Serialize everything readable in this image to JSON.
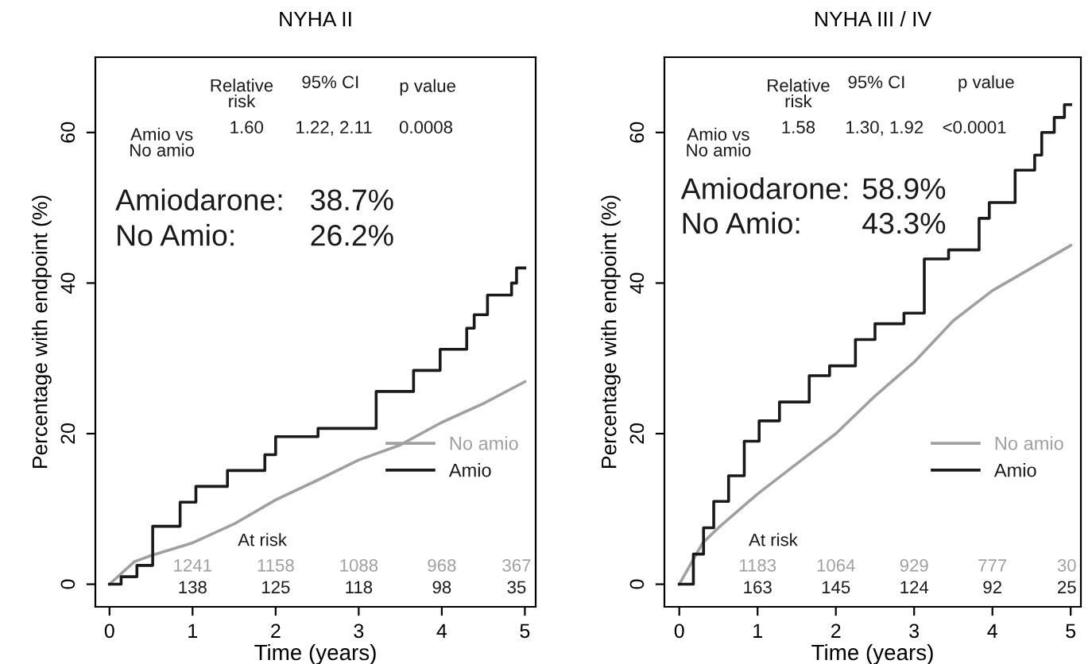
{
  "chart_data": [
    {
      "type": "line",
      "title": "NYHA II",
      "xlabel": "Time (years)",
      "ylabel": "Percentage with endpoint (%)",
      "xlim": [
        -0.17,
        5.13
      ],
      "ylim": [
        -3,
        70
      ],
      "xticks": [
        0,
        1,
        2,
        3,
        4,
        5
      ],
      "yticks": [
        0,
        20,
        40,
        60
      ],
      "grid": false,
      "legend": "right",
      "line_style": "solid",
      "marker": "none",
      "series": [
        {
          "name": "No amio",
          "color": "#a0a0a0",
          "x": [
            0,
            0.3,
            0.5,
            1,
            1.5,
            2,
            2.5,
            3,
            3.5,
            4,
            4.5,
            5
          ],
          "values": [
            0,
            3,
            3.8,
            5.5,
            8,
            11.2,
            13.8,
            16.5,
            18.5,
            21.5,
            24,
            26.9
          ]
        },
        {
          "name": "Amio",
          "type": "step",
          "color": "#1a1a1a",
          "x": [
            0,
            0.14,
            0.33,
            0.52,
            0.85,
            1.04,
            1.42,
            1.87,
            2.0,
            2.51,
            2.89,
            3.21,
            3.66,
            3.98,
            4.3,
            4.39,
            4.55,
            4.84,
            4.9,
            5.0
          ],
          "values": [
            0,
            1,
            2.5,
            7.7,
            10.9,
            13,
            15.1,
            17.2,
            19.6,
            20.7,
            20.7,
            25.6,
            28.4,
            31.2,
            34,
            35.8,
            38.4,
            40,
            42,
            42
          ]
        }
      ],
      "annotations": [
        "Relative\nrisk",
        "95% CI",
        "p value",
        "Amio vs\nNo amio",
        "1.60",
        "1.22, 2.11",
        "0.0008",
        "Amiodarone:",
        "38.7%",
        "No Amio:",
        "26.2%",
        "At risk",
        "1241",
        "1158",
        "1088",
        "968",
        "367",
        "138",
        "125",
        "118",
        "98",
        "35"
      ]
    },
    {
      "type": "line",
      "title": "NYHA III / IV",
      "xlabel": "Time (years)",
      "ylabel": "Percentage with endpoint (%)",
      "xlim": [
        -0.19,
        5.13
      ],
      "ylim": [
        -3,
        70
      ],
      "xticks": [
        0,
        1,
        2,
        3,
        4,
        5
      ],
      "yticks": [
        0,
        20,
        40,
        60
      ],
      "grid": false,
      "legend": "right",
      "line_style": "solid",
      "marker": "none",
      "series": [
        {
          "name": "No amio",
          "color": "#a0a0a0",
          "x": [
            0,
            0.3,
            0.5,
            1,
            1.5,
            2,
            2.5,
            3,
            3.5,
            4,
            4.5,
            5
          ],
          "values": [
            0,
            5.5,
            7.5,
            12,
            16,
            20,
            25,
            29.5,
            35,
            39,
            42,
            45
          ]
        },
        {
          "name": "Amio",
          "type": "step",
          "color": "#1a1a1a",
          "x": [
            0,
            0.18,
            0.31,
            0.44,
            0.63,
            0.83,
            1.02,
            1.28,
            1.54,
            1.66,
            1.92,
            2.25,
            2.5,
            2.87,
            3.13,
            3.44,
            3.83,
            3.96,
            4.29,
            4.54,
            4.63,
            4.79,
            4.92,
            5.0
          ],
          "values": [
            0,
            4,
            7.5,
            11,
            14.4,
            19,
            21.7,
            24.2,
            24.2,
            27.7,
            29,
            32.5,
            34.6,
            36,
            43.2,
            44.4,
            48.6,
            50.7,
            55,
            57,
            60,
            62,
            63.7,
            63.7
          ]
        }
      ],
      "annotations": [
        "Relative\nrisk",
        "95% CI",
        "p value",
        "Amio vs\nNo amio",
        "1.58",
        "1.30, 1.92",
        "<0.0001",
        "Amiodarone:",
        "58.9%",
        "No Amio:",
        "43.3%",
        "At risk",
        "1183",
        "1064",
        "929",
        "777",
        "30",
        "163",
        "145",
        "124",
        "92",
        "25"
      ]
    }
  ]
}
